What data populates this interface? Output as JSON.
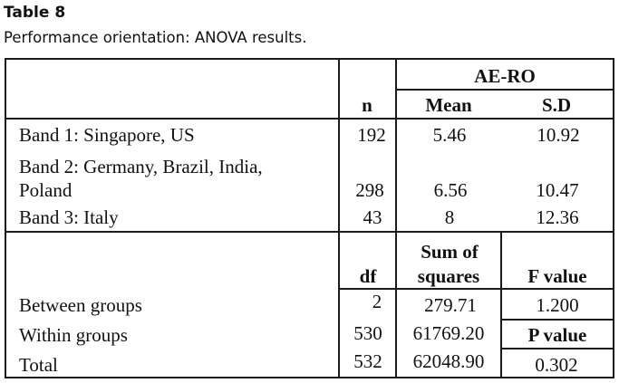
{
  "caption": {
    "label": "Table 8",
    "title": "Performance orientation: ANOVA results."
  },
  "header": {
    "group": "AE-RO",
    "n": "n",
    "mean": "Mean",
    "sd": "S.D"
  },
  "bands": [
    {
      "label": "Band 1: Singapore, US",
      "n": "192",
      "mean": "5.46",
      "sd": "10.92"
    },
    {
      "label_line1": "Band 2: Germany, Brazil, India,",
      "label_line2": "Poland",
      "n": "298",
      "mean": "6.56",
      "sd": "10.47"
    },
    {
      "label": "Band 3: Italy",
      "n": "43",
      "mean": "8",
      "sd": "12.36"
    }
  ],
  "anova_header": {
    "df": "df",
    "ss_line1": "Sum of",
    "ss_line2": "squares",
    "f": "F value",
    "p": "P value"
  },
  "anova_rows": [
    {
      "label": "Between groups",
      "df": "2",
      "ss": "279.71",
      "stat": "1.200"
    },
    {
      "label": "Within groups",
      "df": "530",
      "ss": "61769.20"
    },
    {
      "label": "Total",
      "df": "532",
      "ss": "62048.90",
      "stat": "0.302"
    }
  ]
}
